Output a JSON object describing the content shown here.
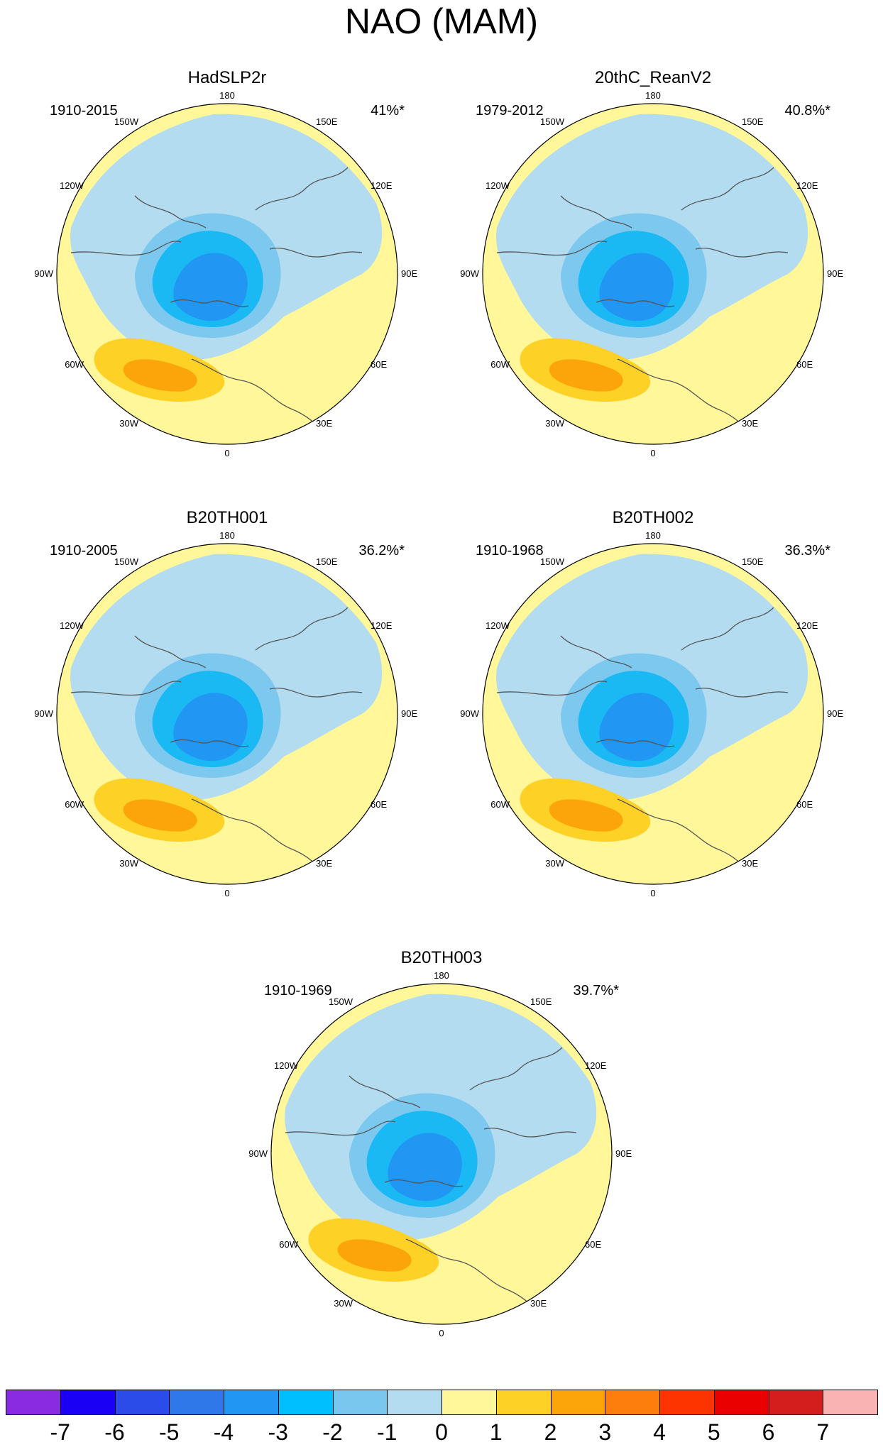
{
  "title": "NAO (MAM)",
  "colors": {
    "lt_blue": "#b3dcf1",
    "mid_blue": "#7dc8ee",
    "cyan": "#1ab9f4",
    "blue": "#2196f3",
    "yellow": "#fff799",
    "gold": "#fdd126",
    "orange": "#fca50a",
    "coast": "#555555"
  },
  "map_labels": {
    "lon_0": "0",
    "lon_180": "180",
    "lon_30w": "30W",
    "lon_60w": "60W",
    "lon_90w": "90W",
    "lon_120w": "120W",
    "lon_150w": "150W",
    "lon_30e": "30E",
    "lon_60e": "60E",
    "lon_90e": "90E",
    "lon_120e": "120E",
    "lon_150e": "150E"
  },
  "panels": [
    {
      "title": "HadSLP2r",
      "period": "1910-2015",
      "variance": "41%*"
    },
    {
      "title": "20thC_ReanV2",
      "period": "1979-2012",
      "variance": "40.8%*"
    },
    {
      "title": "B20TH001",
      "period": "1910-2005",
      "variance": "36.2%*"
    },
    {
      "title": "B20TH002",
      "period": "1910-1968",
      "variance": "36.3%*"
    },
    {
      "title": "B20TH003",
      "period": "1910-1969",
      "variance": "39.7%*"
    }
  ],
  "colorbar": {
    "colors": [
      "#8a2be2",
      "#1a00f5",
      "#2b4ce8",
      "#2f78ea",
      "#2196f3",
      "#00bfff",
      "#79c7ee",
      "#b3dcf1",
      "#fff799",
      "#fdd126",
      "#fca50a",
      "#fd7e0c",
      "#fd3300",
      "#eb0000",
      "#d41d1d",
      "#f9b3b3"
    ],
    "ticks": [
      "-7",
      "-6",
      "-5",
      "-4",
      "-3",
      "-2",
      "-1",
      "0",
      "1",
      "2",
      "3",
      "4",
      "5",
      "6",
      "7"
    ]
  }
}
